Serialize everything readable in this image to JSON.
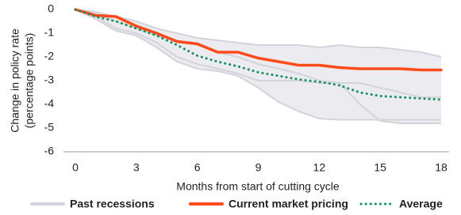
{
  "chart_data": {
    "type": "line",
    "x_label": "Months from start of cutting cycle",
    "y_label": [
      "Change in policy rate",
      "(percentage points)"
    ],
    "x": [
      0,
      1,
      2,
      3,
      4,
      5,
      6,
      7,
      8,
      9,
      10,
      11,
      12,
      13,
      14,
      15,
      16,
      17,
      18
    ],
    "xlim": [
      0,
      18
    ],
    "xticks": [
      0,
      3,
      6,
      9,
      12,
      15,
      18
    ],
    "ylim": [
      -6,
      0
    ],
    "yticks": [
      0,
      -1,
      -2,
      -3,
      -4,
      -5,
      -6
    ],
    "series": [
      {
        "name": "Past recessions",
        "color": "#d3d3db",
        "band_color": "#ebebf0",
        "lines": [
          [
            0,
            -0.1,
            -0.3,
            -0.5,
            -0.8,
            -1.0,
            -1.2,
            -1.3,
            -1.4,
            -1.5,
            -1.5,
            -1.5,
            -1.6,
            -1.5,
            -1.6,
            -1.6,
            -1.7,
            -1.8,
            -2.0
          ],
          [
            0,
            -0.3,
            -0.8,
            -1.0,
            -1.4,
            -2.0,
            -2.3,
            -2.5,
            -2.7,
            -3.0,
            -3.0,
            -3.0,
            -3.1,
            -3.1,
            -4.0,
            -4.7,
            -4.8,
            -4.8,
            -4.8
          ],
          [
            0,
            -0.4,
            -0.9,
            -1.1,
            -1.6,
            -2.2,
            -2.5,
            -2.6,
            -2.8,
            -3.3,
            -3.9,
            -4.3,
            -4.6,
            -4.65,
            -4.65,
            -4.65,
            -4.65,
            -4.65,
            -4.65
          ],
          [
            0,
            -0.2,
            -0.5,
            -0.8,
            -1.1,
            -1.3,
            -1.5,
            -1.8,
            -2.0,
            -2.3,
            -2.5,
            -2.7,
            -3.0,
            -3.1,
            -3.1,
            -3.3,
            -3.5,
            -3.7,
            -3.7
          ]
        ]
      },
      {
        "name": "Current market pricing",
        "color": "#ff4a1c",
        "values": [
          0,
          -0.25,
          -0.3,
          -0.7,
          -1.0,
          -1.35,
          -1.45,
          -1.8,
          -1.8,
          -2.05,
          -2.2,
          -2.35,
          -2.35,
          -2.45,
          -2.5,
          -2.5,
          -2.5,
          -2.55,
          -2.55
        ]
      },
      {
        "name": "Average",
        "color": "#12905a",
        "dotted": true,
        "values": [
          0,
          -0.3,
          -0.5,
          -0.8,
          -1.1,
          -1.5,
          -1.95,
          -2.2,
          -2.4,
          -2.65,
          -2.8,
          -2.95,
          -3.05,
          -3.2,
          -3.5,
          -3.65,
          -3.7,
          -3.75,
          -3.8
        ]
      }
    ]
  }
}
